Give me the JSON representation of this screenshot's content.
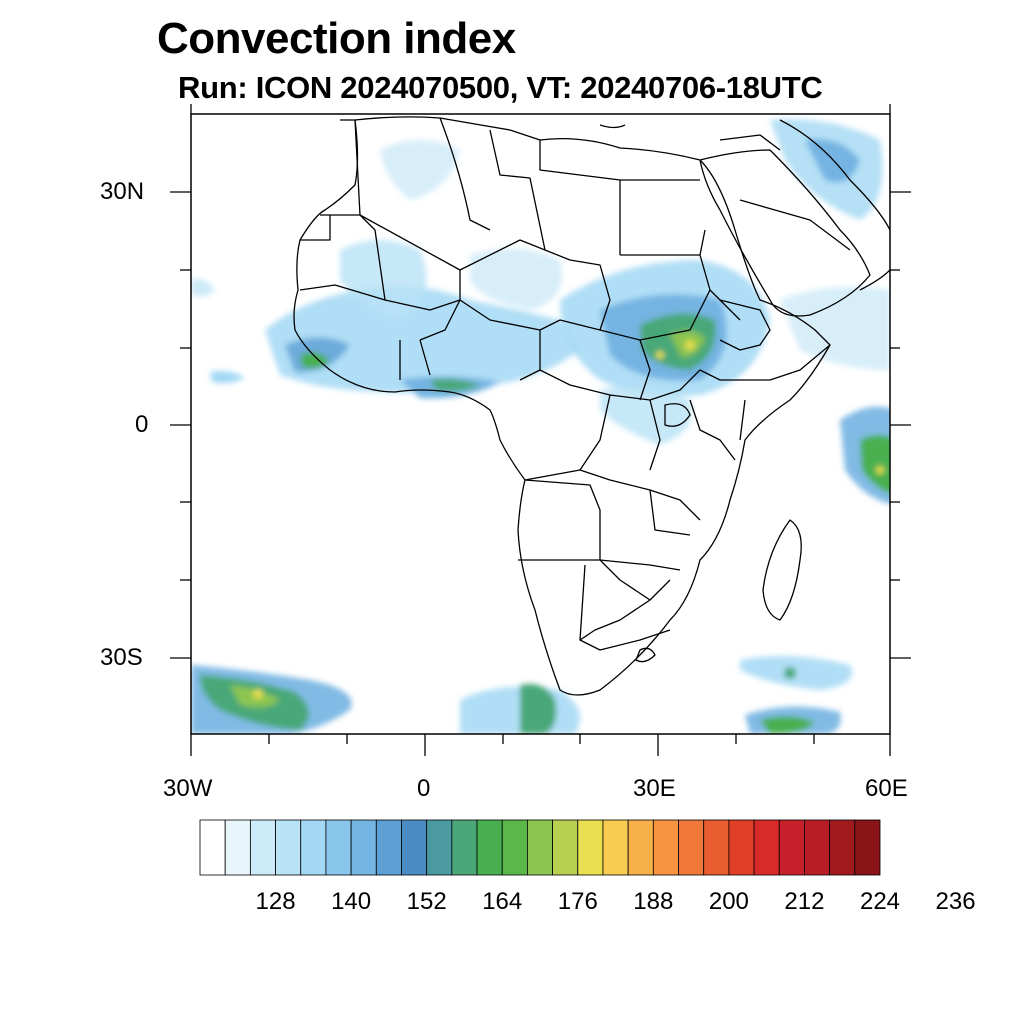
{
  "title": "Convection index",
  "subtitle": "Run: ICON 2024070500,  VT: 20240706-18UTC",
  "axes": {
    "lon_labels": [
      "30W",
      "0",
      "30E",
      "60E"
    ],
    "lat_labels": [
      "30N",
      "0",
      "30S"
    ],
    "lon_range": [
      -30,
      60
    ],
    "lat_range": [
      -40,
      40
    ]
  },
  "colorbar": {
    "labels": [
      "128",
      "140",
      "152",
      "164",
      "176",
      "188",
      "200",
      "212",
      "224",
      "236"
    ],
    "colors": [
      "#ffffff",
      "#e8f6fc",
      "#cdeaf8",
      "#b8e2f6",
      "#a2d8f4",
      "#8ac6ec",
      "#74b4e2",
      "#5c9fd4",
      "#4a8cc4",
      "#4a9aa0",
      "#4aa878",
      "#48b050",
      "#5ab84a",
      "#8cc450",
      "#b8d050",
      "#e8e050",
      "#f8cc50",
      "#f8b048",
      "#f89440",
      "#f07838",
      "#e85c30",
      "#e04028",
      "#d82a28",
      "#c8202a",
      "#b81c24",
      "#a01a1e",
      "#8a1418"
    ]
  }
}
